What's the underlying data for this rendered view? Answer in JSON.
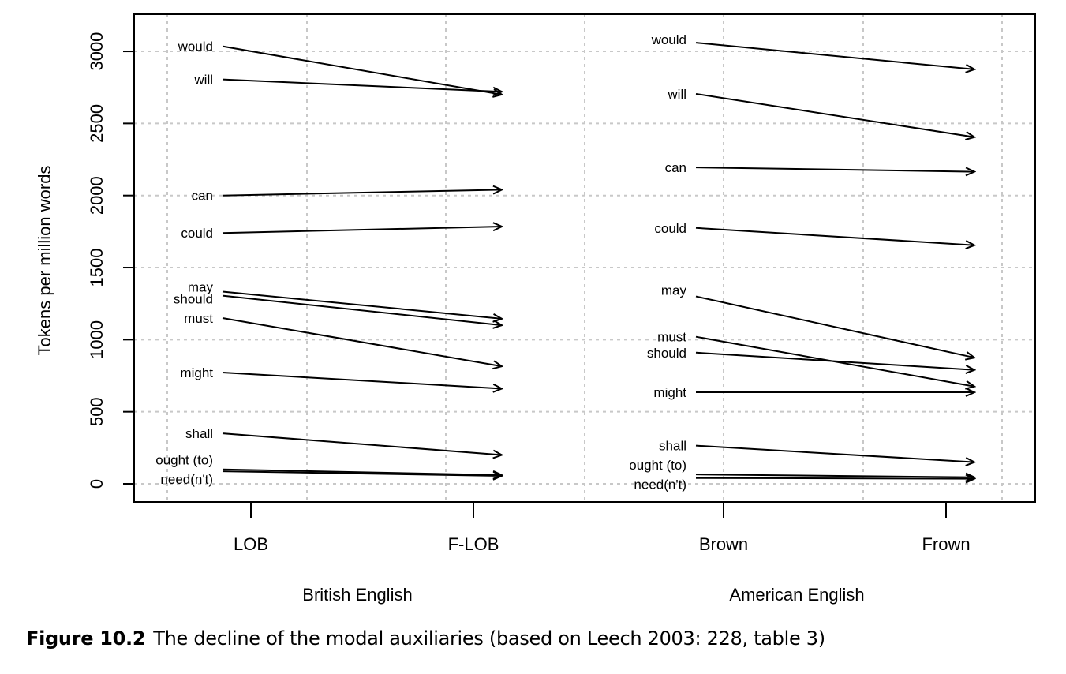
{
  "chart_data": {
    "type": "line",
    "subtype": "slope-arrows",
    "ylabel": "Tokens per million words",
    "ylim": [
      -120,
      3250
    ],
    "yticks": [
      0,
      500,
      1000,
      1500,
      2000,
      2500,
      3000
    ],
    "grid": true,
    "panels": [
      {
        "group_label": "British English",
        "categories": [
          "LOB",
          "F-LOB"
        ],
        "series": [
          {
            "name": "would",
            "values": [
              3035,
              2700
            ]
          },
          {
            "name": "will",
            "values": [
              2805,
              2720
            ]
          },
          {
            "name": "can",
            "values": [
              2000,
              2040
            ]
          },
          {
            "name": "could",
            "values": [
              1740,
              1785
            ]
          },
          {
            "name": "may",
            "values": [
              1333,
              1145
            ]
          },
          {
            "name": "should",
            "values": [
              1305,
              1100
            ]
          },
          {
            "name": "must",
            "values": [
              1150,
              815
            ]
          },
          {
            "name": "might",
            "values": [
              772,
              660
            ]
          },
          {
            "name": "shall",
            "values": [
              350,
              200
            ]
          },
          {
            "name": "ought (to)",
            "values": [
              100,
              60
            ]
          },
          {
            "name": "need(n't)",
            "values": [
              87,
              55
            ]
          }
        ]
      },
      {
        "group_label": "American English",
        "categories": [
          "Brown",
          "Frown"
        ],
        "series": [
          {
            "name": "would",
            "values": [
              3060,
              2875
            ]
          },
          {
            "name": "will",
            "values": [
              2705,
              2405
            ]
          },
          {
            "name": "can",
            "values": [
              2195,
              2165
            ]
          },
          {
            "name": "could",
            "values": [
              1775,
              1655
            ]
          },
          {
            "name": "may",
            "values": [
              1300,
              875
            ]
          },
          {
            "name": "must",
            "values": [
              1020,
              675
            ]
          },
          {
            "name": "should",
            "values": [
              910,
              790
            ]
          },
          {
            "name": "might",
            "values": [
              635,
              635
            ]
          },
          {
            "name": "shall",
            "values": [
              265,
              150
            ]
          },
          {
            "name": "ought (to)",
            "values": [
              65,
              45
            ]
          },
          {
            "name": "need(n't)",
            "values": [
              40,
              35
            ]
          }
        ]
      }
    ]
  },
  "caption": {
    "figure_number": "Figure 10.2",
    "text": "The decline of the modal auxiliaries (based on Leech 2003: 228, table 3)"
  }
}
